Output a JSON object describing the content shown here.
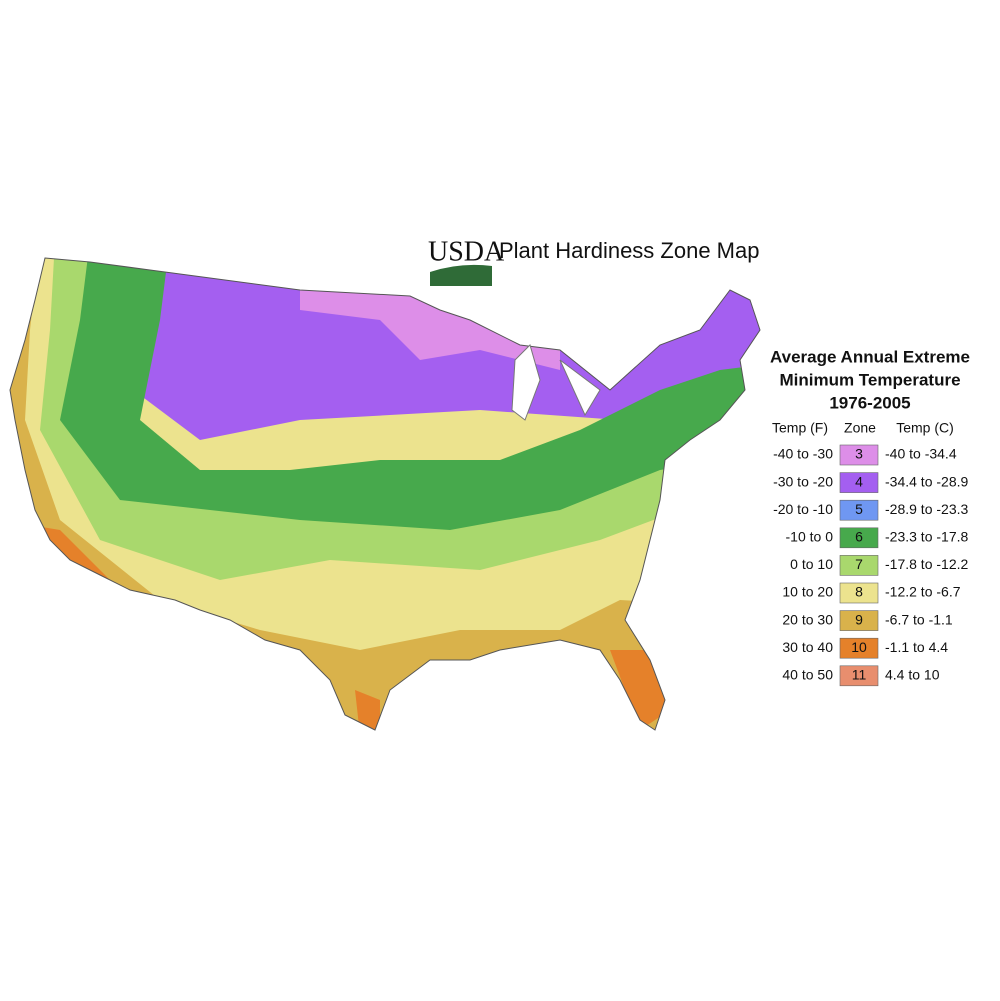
{
  "header": {
    "logo": "USDA",
    "title": "Plant Hardiness Zone Map"
  },
  "legend": {
    "title": [
      "Average Annual Extreme",
      "Minimum Temperature",
      "1976-2005"
    ],
    "columns": [
      "Temp (F)",
      "Zone",
      "Temp (C)"
    ],
    "rows": [
      {
        "temp_f": "-40 to -30",
        "zone": "3",
        "temp_c": "-40 to -34.4",
        "color": "#dd8ee8"
      },
      {
        "temp_f": "-30 to -20",
        "zone": "4",
        "temp_c": "-34.4 to -28.9",
        "color": "#a45ff0"
      },
      {
        "temp_f": "-20 to -10",
        "zone": "5",
        "temp_c": "-28.9 to -23.3",
        "color": "#6f97f2"
      },
      {
        "temp_f": "-10 to 0",
        "zone": "6",
        "temp_c": "-23.3 to -17.8",
        "color": "#47a94c"
      },
      {
        "temp_f": "0 to 10",
        "zone": "7",
        "temp_c": "-17.8 to -12.2",
        "color": "#a9d86d"
      },
      {
        "temp_f": "10 to 20",
        "zone": "8",
        "temp_c": "-12.2 to -6.7",
        "color": "#ece38e"
      },
      {
        "temp_f": "20 to 30",
        "zone": "9",
        "temp_c": "-6.7 to -1.1",
        "color": "#d9b24b"
      },
      {
        "temp_f": "30 to 40",
        "zone": "10",
        "temp_c": "-1.1 to 4.4",
        "color": "#e5812a"
      },
      {
        "temp_f": "40 to 50",
        "zone": "11",
        "temp_c": "4.4 to 10",
        "color": "#e88e6e"
      }
    ]
  }
}
